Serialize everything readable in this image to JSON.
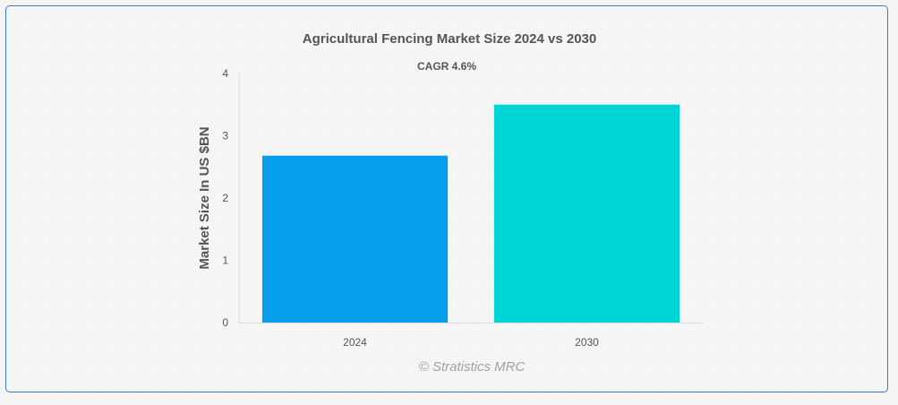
{
  "chart_data": {
    "type": "bar",
    "title": "Agricultural Fencing Market Size 2024 vs 2030",
    "subtitle": "CAGR 4.6%",
    "xlabel": "",
    "ylabel": "Market Size In US $BN",
    "categories": [
      "2024",
      "2030"
    ],
    "values": [
      2.68,
      3.5
    ],
    "colors": [
      "#069eec",
      "#00d5d5"
    ],
    "ylim": [
      0,
      4
    ],
    "yticks": [
      "0",
      "1",
      "2",
      "3",
      "4"
    ],
    "grid": false,
    "legend": "none"
  },
  "credit": "© Stratistics MRC"
}
